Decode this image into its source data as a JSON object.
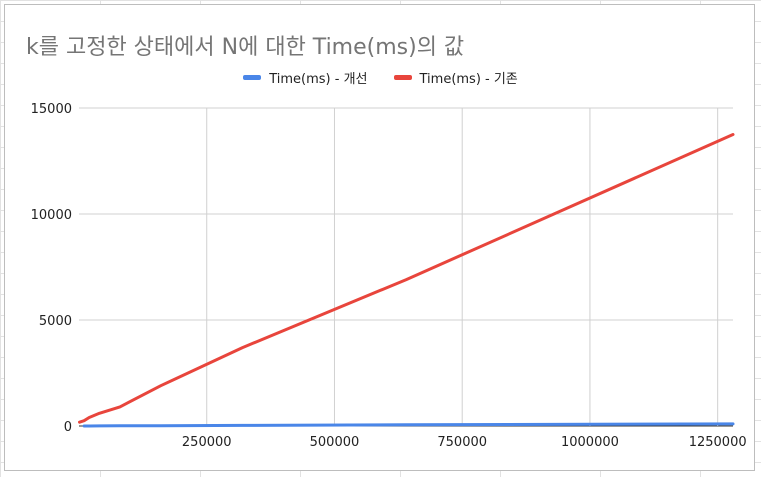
{
  "chart_data": {
    "type": "line",
    "title": "k를 고정한 상태에서 N에 대한 Time(ms)의 값",
    "xlabel": "",
    "ylabel": "",
    "xlim": [
      0,
      1280000
    ],
    "ylim": [
      0,
      15000
    ],
    "x_ticks": [
      250000,
      500000,
      750000,
      1000000,
      1250000
    ],
    "y_ticks": [
      0,
      5000,
      10000,
      15000
    ],
    "grid": true,
    "legend_position": "top",
    "series": [
      {
        "name": "Time(ms) - 개선",
        "color": "#4a86e8",
        "x": [
          10000,
          20000,
          40000,
          80000,
          160000,
          320000,
          640000,
          1280000
        ],
        "y": [
          1,
          2,
          4,
          8,
          16,
          30,
          55,
          100
        ]
      },
      {
        "name": "Time(ms) - 기존",
        "color": "#e8453c",
        "x": [
          1000,
          10000,
          20000,
          40000,
          80000,
          160000,
          320000,
          640000,
          1280000
        ],
        "y": [
          180,
          250,
          400,
          600,
          900,
          1900,
          3700,
          6900,
          13750
        ]
      }
    ]
  }
}
